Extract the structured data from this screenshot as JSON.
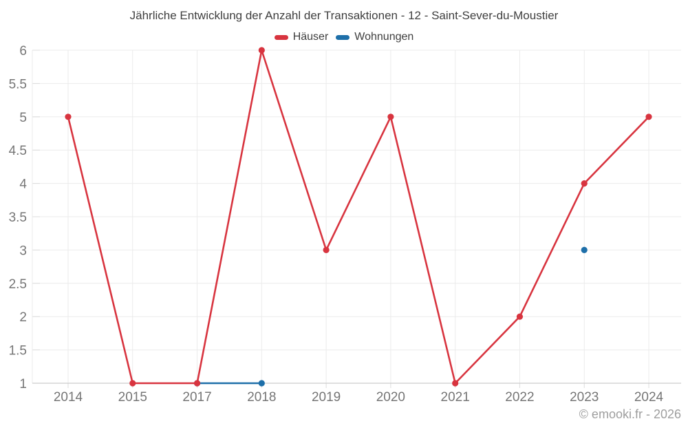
{
  "chart_data": {
    "type": "line",
    "title": "Jährliche Entwicklung der Anzahl der Transaktionen - 12 - Saint-Sever-du-Moustier",
    "categories": [
      "2014",
      "2015",
      "2017",
      "2018",
      "2019",
      "2020",
      "2021",
      "2022",
      "2023",
      "2024"
    ],
    "series": [
      {
        "name": "Häuser",
        "color": "#d8343f",
        "values": [
          5,
          1,
          1,
          6,
          3,
          5,
          1,
          2,
          4,
          5
        ]
      },
      {
        "name": "Wohnungen",
        "color": "#1e6fa9",
        "values": [
          null,
          null,
          1,
          1,
          null,
          null,
          null,
          null,
          3,
          null
        ]
      }
    ],
    "xlabel": "",
    "ylabel": "",
    "ylim": [
      1,
      6
    ],
    "ytick_step": 0.5,
    "yticks": [
      "1",
      "1.5",
      "2",
      "2.5",
      "3",
      "3.5",
      "4",
      "4.5",
      "5",
      "5.5",
      "6"
    ],
    "grid": true,
    "legend_position": "top",
    "colors": {
      "grid": "#ebebeb",
      "axis": "#cccccc",
      "tick": "#dcdcdc",
      "label": "#757575",
      "title": "#3e3e3e",
      "credit": "#9e9e9e"
    }
  },
  "footer": {
    "credit": "© emooki.fr - 2026"
  }
}
